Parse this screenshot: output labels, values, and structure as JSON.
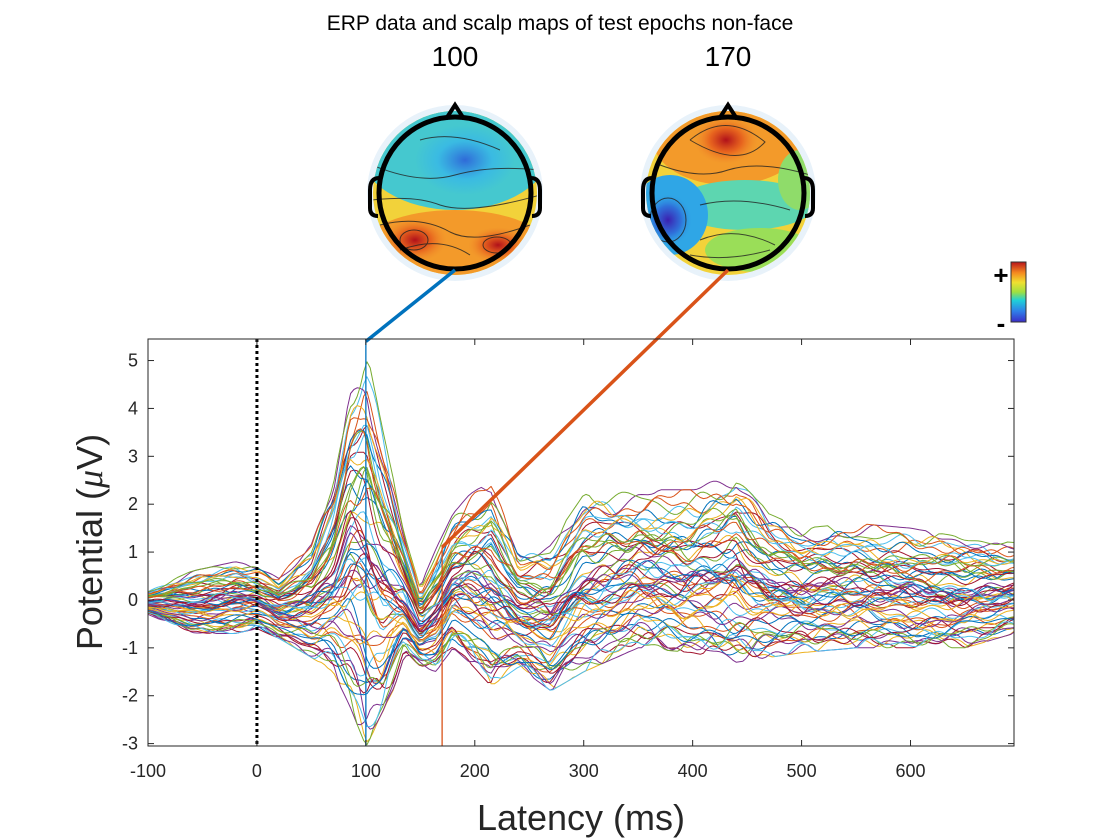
{
  "chart_data": {
    "type": "line",
    "title": "ERP data and scalp maps of test epochs non-face",
    "xlabel": "Latency (ms)",
    "ylabel_prefix": "Potential (",
    "ylabel_mu": "μ",
    "ylabel_suffix": "V)",
    "xlim": [
      -100,
      695
    ],
    "ylim": [
      -3.05,
      5.45
    ],
    "x_ticks": [
      -100,
      0,
      100,
      200,
      300,
      400,
      500,
      600
    ],
    "y_ticks": [
      -3,
      -2,
      -1,
      0,
      1,
      2,
      3,
      4,
      5
    ],
    "grid": false,
    "stimulus_onset_ms": 0,
    "n_channels": 64,
    "envelope": {
      "x": [
        -100,
        -60,
        -40,
        -20,
        0,
        20,
        50,
        70,
        85,
        100,
        115,
        135,
        150,
        165,
        180,
        195,
        215,
        240,
        270,
        300,
        350,
        400,
        440,
        470,
        500,
        550,
        600,
        650,
        695
      ],
      "upper": [
        0.2,
        0.6,
        0.7,
        0.8,
        0.7,
        0.5,
        1.2,
        2.5,
        4.6,
        5.3,
        3.6,
        1.5,
        0.3,
        1.1,
        1.8,
        2.2,
        2.5,
        1.0,
        1.2,
        2.2,
        2.3,
        2.3,
        2.7,
        1.8,
        1.5,
        1.6,
        1.5,
        1.3,
        1.2
      ],
      "lower": [
        -0.3,
        -0.7,
        -0.7,
        -0.7,
        -0.6,
        -0.8,
        -1.2,
        -1.5,
        -2.2,
        -3.05,
        -2.6,
        -1.2,
        -1.4,
        -1.5,
        -1.0,
        -1.3,
        -1.8,
        -1.4,
        -1.9,
        -1.5,
        -1.0,
        -1.1,
        -1.3,
        -1.2,
        -1.1,
        -1.0,
        -1.0,
        -1.0,
        -0.7
      ]
    },
    "scalp_maps": [
      {
        "latency_label": "100",
        "latency_ms": 100,
        "peak_uV": 5.4,
        "line_color": "#0072BD"
      },
      {
        "latency_label": "170",
        "latency_ms": 170,
        "peak_uV": 1.1,
        "line_color": "#D95319"
      }
    ],
    "colorbar": {
      "plus_label": "+",
      "minus_label": "-"
    },
    "series_colors": [
      "#0072BD",
      "#D95319",
      "#EDB120",
      "#7E2F8E",
      "#77AC30",
      "#4DBEEE",
      "#A2142F"
    ]
  }
}
